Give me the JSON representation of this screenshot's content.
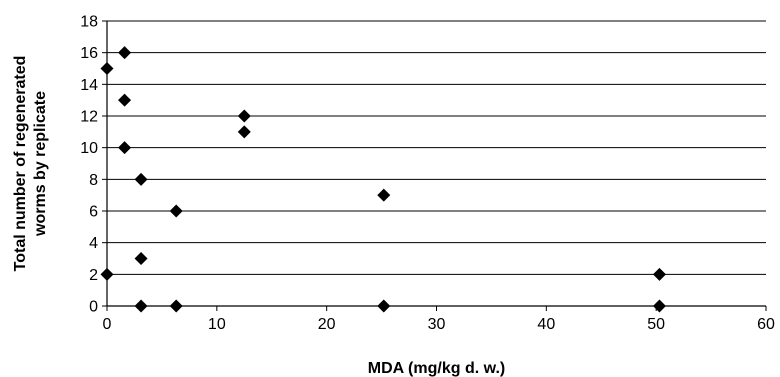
{
  "chart_data": {
    "type": "scatter",
    "title": "",
    "xlabel": "MDA (mg/kg d. w.)",
    "ylabel_lines": [
      "Total number of regenerated",
      "worms by replicate"
    ],
    "xlim": [
      0,
      60
    ],
    "ylim": [
      0,
      18
    ],
    "xticks": [
      "0",
      "10",
      "20",
      "30",
      "40",
      "50",
      "60"
    ],
    "yticks": [
      "0",
      "2",
      "4",
      "6",
      "8",
      "10",
      "12",
      "14",
      "16",
      "18"
    ],
    "grid": "horizontal",
    "legend": "none",
    "marker": "diamond",
    "marker_color": "#000000",
    "points": [
      {
        "x": 0,
        "y": 15
      },
      {
        "x": 0,
        "y": 2
      },
      {
        "x": 1.6,
        "y": 16
      },
      {
        "x": 1.6,
        "y": 13
      },
      {
        "x": 1.6,
        "y": 10
      },
      {
        "x": 3.1,
        "y": 8
      },
      {
        "x": 3.1,
        "y": 3
      },
      {
        "x": 3.1,
        "y": 0
      },
      {
        "x": 6.3,
        "y": 6
      },
      {
        "x": 6.3,
        "y": 0
      },
      {
        "x": 12.5,
        "y": 12
      },
      {
        "x": 12.5,
        "y": 11
      },
      {
        "x": 25.2,
        "y": 7
      },
      {
        "x": 25.2,
        "y": 0
      },
      {
        "x": 50.3,
        "y": 2
      },
      {
        "x": 50.3,
        "y": 0
      }
    ]
  }
}
